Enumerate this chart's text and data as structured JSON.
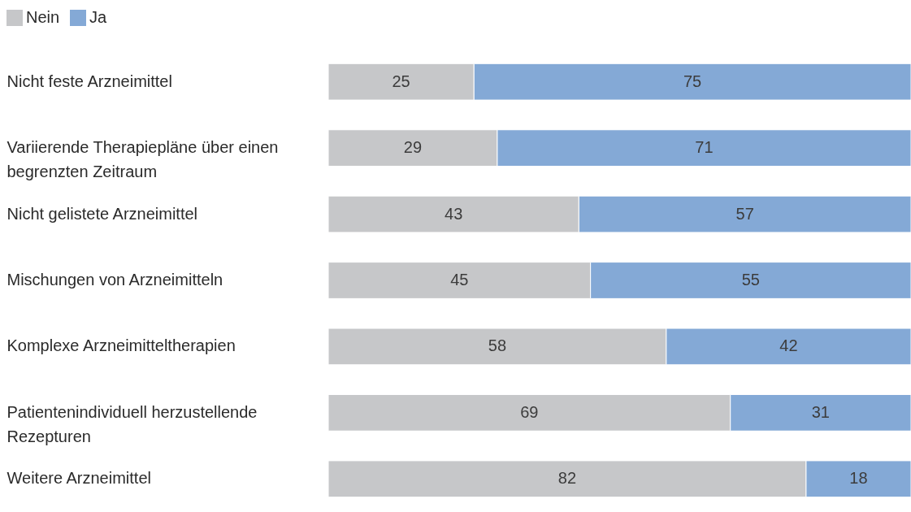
{
  "chart_data": {
    "type": "bar",
    "orientation": "horizontal",
    "stacked": true,
    "data_labels": true,
    "legend": "top left",
    "categories": [
      "Nicht feste Arzneimittel",
      "Variierende Therapiepläne über einen begrenzten Zeitraum",
      "Nicht gelistete Arzneimittel",
      "Mischungen von Arzneimitteln",
      "Komplexe Arzneimitteltherapien",
      "Patientenindividuell herzustellende Rezepturen",
      "Weitere Arzneimittel"
    ],
    "xlim": [
      0,
      100
    ],
    "series": [
      {
        "name": "Nein",
        "color": "#c6c7c9",
        "values": [
          25,
          29,
          43,
          45,
          58,
          69,
          82
        ]
      },
      {
        "name": "Ja",
        "color": "#84a9d6",
        "values": [
          75,
          71,
          57,
          55,
          42,
          31,
          18
        ]
      }
    ]
  }
}
